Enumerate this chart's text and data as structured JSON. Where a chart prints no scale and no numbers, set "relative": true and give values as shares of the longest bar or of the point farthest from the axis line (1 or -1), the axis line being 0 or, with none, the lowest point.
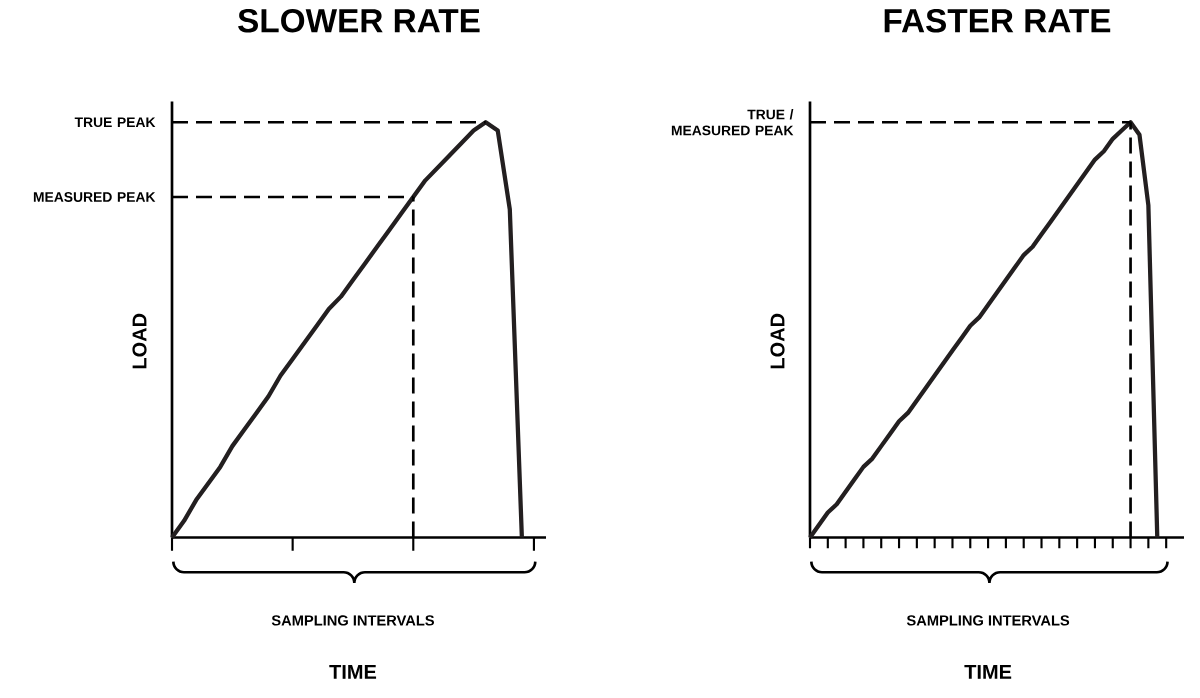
{
  "chart_data": [
    {
      "type": "line",
      "title": "SLOWER RATE",
      "xlabel": "TIME",
      "ylabel": "LOAD",
      "relative": true,
      "categories": [
        null,
        null,
        null,
        null,
        null,
        null,
        null,
        null,
        null,
        null,
        null,
        null,
        null,
        null,
        null,
        null,
        null,
        null,
        null,
        null,
        null,
        null,
        null,
        null,
        null,
        null,
        null,
        null,
        null,
        null,
        null,
        null
      ],
      "series": [
        {
          "color": "#231f20",
          "values": [
            0,
            0.04,
            0.09,
            0.13,
            0.17,
            0.22,
            0.26,
            0.3,
            0.34,
            0.39,
            0.43,
            0.47,
            0.51,
            0.55,
            0.58,
            0.62,
            0.66,
            0.7,
            0.74,
            0.78,
            0.82,
            0.86,
            0.89,
            0.92,
            0.95,
            0.98,
            1,
            0.98,
            0.79,
            0,
            null,
            null
          ]
        }
      ],
      "annotations": [
        "TRUE PEAK",
        "MEASURED PEAK",
        "SAMPLING INTERVALS"
      ]
    },
    {
      "type": "line",
      "title": "FASTER RATE",
      "xlabel": "TIME",
      "ylabel": "LOAD",
      "relative": true,
      "categories": [
        null,
        null,
        null,
        null,
        null,
        null,
        null,
        null,
        null,
        null,
        null,
        null,
        null,
        null,
        null,
        null,
        null,
        null,
        null,
        null,
        null,
        null,
        null,
        null,
        null,
        null,
        null,
        null,
        null,
        null,
        null,
        null,
        null,
        null,
        null,
        null,
        null,
        null,
        null,
        null,
        null,
        null,
        null
      ],
      "series": [
        {
          "color": "#231f20",
          "values": [
            0,
            0.03,
            0.06,
            0.08,
            0.11,
            0.14,
            0.17,
            0.19,
            0.22,
            0.25,
            0.28,
            0.3,
            0.33,
            0.36,
            0.39,
            0.42,
            0.45,
            0.48,
            0.51,
            0.53,
            0.56,
            0.59,
            0.62,
            0.65,
            0.68,
            0.7,
            0.73,
            0.76,
            0.79,
            0.82,
            0.85,
            0.88,
            0.91,
            0.93,
            0.96,
            0.98,
            1,
            0.97,
            0.8,
            0,
            null,
            null,
            null
          ]
        }
      ],
      "annotations": [
        "TRUE / MEASURED PEAK",
        "SAMPLING INTERVALS"
      ]
    }
  ]
}
